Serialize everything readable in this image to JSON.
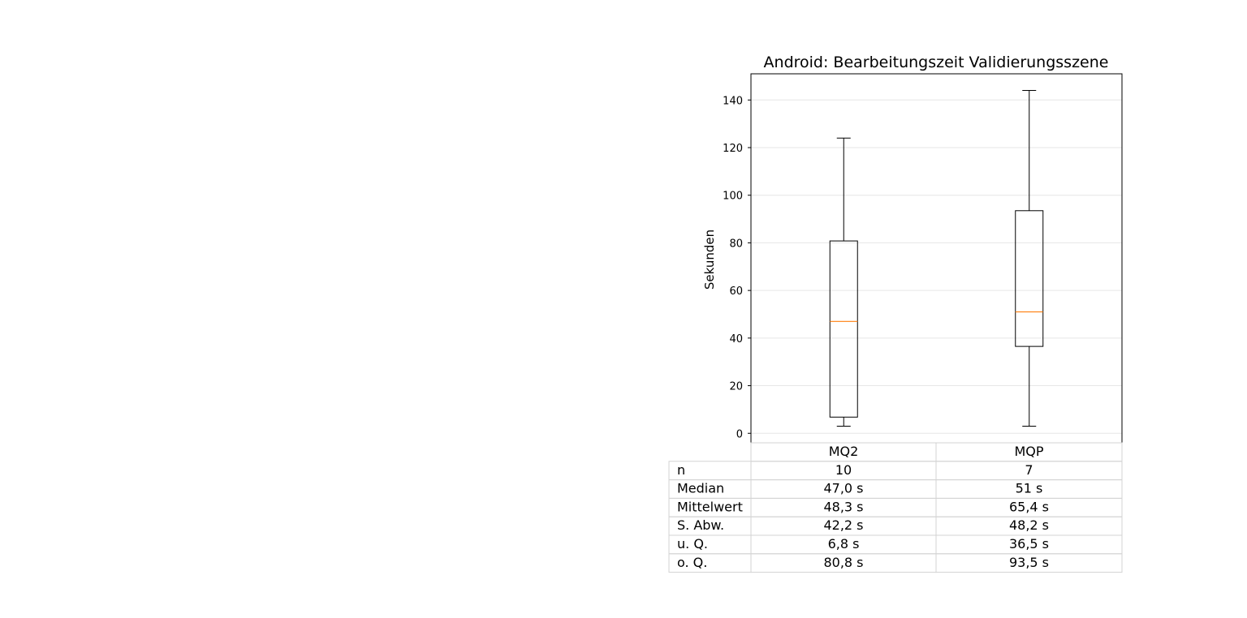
{
  "chart_data": {
    "type": "box",
    "title": "Android: Bearbeitungszeit Validierungsszene",
    "xlabel": "",
    "ylabel": "Sekunden",
    "ylim": [
      -4,
      151
    ],
    "yticks": [
      0,
      20,
      40,
      60,
      80,
      100,
      120,
      140
    ],
    "grid": "horizontal",
    "categories": [
      "MQ2",
      "MQP"
    ],
    "boxes": [
      {
        "category": "MQ2",
        "whisker_low": 3,
        "q1": 6.8,
        "median": 47.0,
        "q3": 80.8,
        "whisker_high": 124
      },
      {
        "category": "MQP",
        "whisker_low": 3,
        "q1": 36.5,
        "median": 51,
        "q3": 93.5,
        "whisker_high": 144
      }
    ],
    "colors": {
      "median": "#ff7f0e",
      "box": "#000000",
      "grid": "#e6e6e6",
      "table_border": "#d3d3d3"
    },
    "table": {
      "rows": [
        {
          "label": "n",
          "values": [
            "10",
            "7"
          ]
        },
        {
          "label": "Median",
          "values": [
            "47,0 s",
            "51 s"
          ]
        },
        {
          "label": "Mittelwert",
          "values": [
            "48,3 s",
            "65,4 s"
          ]
        },
        {
          "label": "S. Abw.",
          "values": [
            "42,2 s",
            "48,2 s"
          ]
        },
        {
          "label": "u. Q.",
          "values": [
            "6,8 s",
            "36,5 s"
          ]
        },
        {
          "label": "o. Q.",
          "values": [
            "80,8 s",
            "93,5 s"
          ]
        }
      ]
    }
  }
}
